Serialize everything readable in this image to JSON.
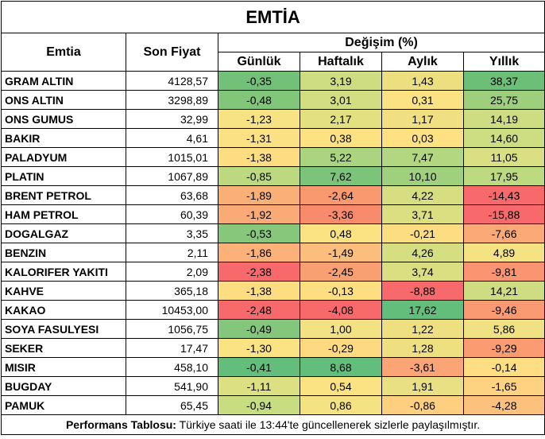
{
  "title": "EMTİA",
  "headers": {
    "commodity": "Emtia",
    "last_price": "Son Fiyat",
    "change": "Değişim (%)",
    "daily": "Günlük",
    "weekly": "Haftalık",
    "monthly": "Aylık",
    "yearly": "Yıllık"
  },
  "rows": [
    {
      "name": "GRAM ALTIN",
      "price": "4128,57",
      "d": "-0,35",
      "w": "3,19",
      "m": "1,43",
      "y": "38,37",
      "c": [
        "#73c178",
        "#cfdd82",
        "#ecdf7f",
        "#6cbf76"
      ]
    },
    {
      "name": "ONS ALTIN",
      "price": "3298,89",
      "d": "-0,48",
      "w": "3,01",
      "m": "0,31",
      "y": "25,75",
      "c": [
        "#82c67a",
        "#d3de82",
        "#fbe283",
        "#9ecf7d"
      ]
    },
    {
      "name": "ONS GUMUS",
      "price": "32,99",
      "d": "-1,23",
      "w": "2,17",
      "m": "1,17",
      "y": "14,19",
      "c": [
        "#f7e383",
        "#e3e082",
        "#f0e081",
        "#cfdd82"
      ]
    },
    {
      "name": "BAKIR",
      "price": "4,61",
      "d": "-1,31",
      "w": "0,38",
      "m": "0,03",
      "y": "14,60",
      "c": [
        "#fbe183",
        "#fde183",
        "#fde183",
        "#cddd82"
      ]
    },
    {
      "name": "PALADYUM",
      "price": "1015,01",
      "d": "-1,38",
      "w": "5,22",
      "m": "7,47",
      "y": "11,05",
      "c": [
        "#fddd81",
        "#aad47f",
        "#b3d680",
        "#d9df82"
      ]
    },
    {
      "name": "PLATIN",
      "price": "1067,89",
      "d": "-0,85",
      "w": "7,62",
      "m": "10,10",
      "y": "17,95",
      "c": [
        "#bcd980",
        "#7cc47a",
        "#9fd07e",
        "#bdda81"
      ]
    },
    {
      "name": "BRENT PETROL",
      "price": "63,68",
      "d": "-1,89",
      "w": "-2,64",
      "m": "4,22",
      "y": "-14,43",
      "c": [
        "#f9b077",
        "#f8996f",
        "#d7de82",
        "#f8696b"
      ]
    },
    {
      "name": "HAM PETROL",
      "price": "60,39",
      "d": "-1,92",
      "w": "-3,36",
      "m": "3,71",
      "y": "-15,88",
      "c": [
        "#f9aa75",
        "#f98b6d",
        "#dcde82",
        "#f8696b"
      ]
    },
    {
      "name": "DOGALGAZ",
      "price": "3,35",
      "d": "-0,53",
      "w": "0,48",
      "m": "-0,21",
      "y": "-7,66",
      "c": [
        "#86c77b",
        "#fbe283",
        "#fddd82",
        "#fbaa77"
      ]
    },
    {
      "name": "BENZIN",
      "price": "2,11",
      "d": "-1,86",
      "w": "-1,49",
      "m": "4,26",
      "y": "4,89",
      "c": [
        "#fbb178",
        "#fbbe7c",
        "#d6de82",
        "#f5e383"
      ]
    },
    {
      "name": "KALORIFER YAKITI",
      "price": "2,09",
      "d": "-2,38",
      "w": "-2,45",
      "m": "3,74",
      "y": "-9,81",
      "c": [
        "#f8696b",
        "#f9a073",
        "#dcde82",
        "#fa9471"
      ]
    },
    {
      "name": "KAHVE",
      "price": "365,18",
      "d": "-1,38",
      "w": "-0,13",
      "m": "-8,88",
      "y": "14,21",
      "c": [
        "#fddd81",
        "#fddf82",
        "#f8696b",
        "#cfdd82"
      ]
    },
    {
      "name": "KAKAO",
      "price": "10453,00",
      "d": "-2,48",
      "w": "-4,08",
      "m": "17,62",
      "y": "-9,46",
      "c": [
        "#f8696b",
        "#f8696b",
        "#63be7b",
        "#fa9a72"
      ]
    },
    {
      "name": "SOYA FASULYESI",
      "price": "1056,75",
      "d": "-0,49",
      "w": "1,00",
      "m": "1,22",
      "y": "5,86",
      "c": [
        "#84c67b",
        "#f2e283",
        "#eedf81",
        "#f0e283"
      ]
    },
    {
      "name": "SEKER",
      "price": "17,47",
      "d": "-1,30",
      "w": "-0,29",
      "m": "1,28",
      "y": "-9,29",
      "c": [
        "#fbe283",
        "#fdd981",
        "#eedf81",
        "#fa9b72"
      ]
    },
    {
      "name": "MISIR",
      "price": "458,10",
      "d": "-0,41",
      "w": "8,68",
      "m": "-3,61",
      "y": "-0,14",
      "c": [
        "#63be7b",
        "#63be7b",
        "#fba476",
        "#fdde82"
      ]
    },
    {
      "name": "BUGDAY",
      "price": "541,90",
      "d": "-1,11",
      "w": "0,54",
      "m": "1,91",
      "y": "-1,65",
      "c": [
        "#dcdf82",
        "#fbe283",
        "#e8e082",
        "#fdd280"
      ]
    },
    {
      "name": "PAMUK",
      "price": "65,45",
      "d": "-0,94",
      "w": "0,86",
      "m": "-0,86",
      "y": "-4,28",
      "c": [
        "#c8dc81",
        "#f4e283",
        "#fdcf7f",
        "#fcc27d"
      ]
    }
  ],
  "footer": {
    "label": "Performans Tablosu:",
    "text": " Türkiye saati ile 13:44'te güncellenerek sizlerle paylaşılmıştır."
  }
}
